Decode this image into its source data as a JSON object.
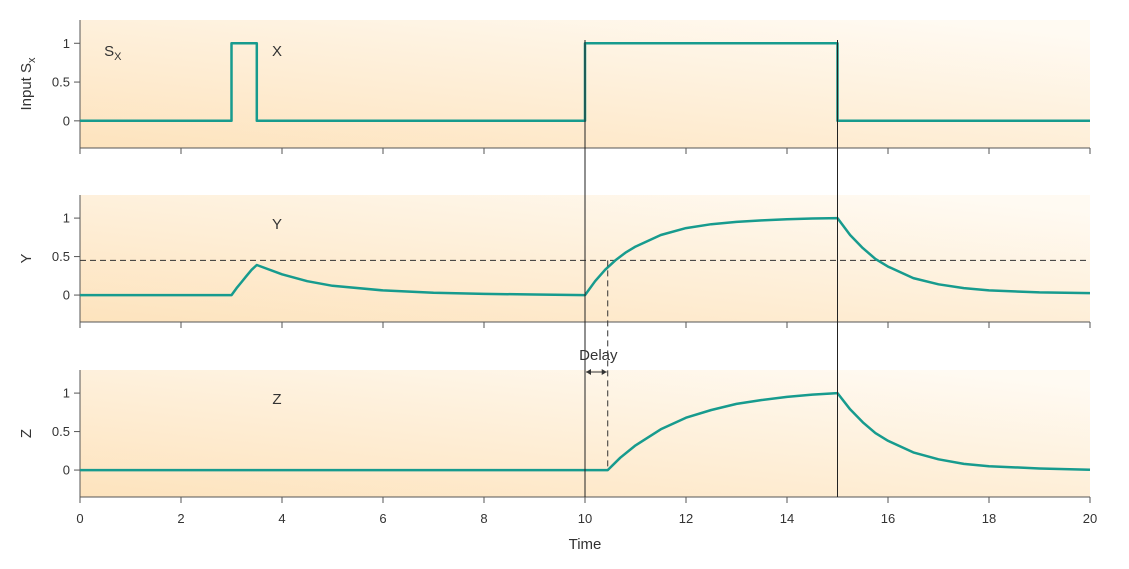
{
  "chart_data": {
    "type": "line",
    "xlabel": "Time",
    "xlim": [
      0,
      20
    ],
    "x_ticks": [
      0,
      2,
      4,
      6,
      8,
      10,
      12,
      14,
      16,
      18,
      20
    ],
    "colors": {
      "line": "#179b8e",
      "axis": "#555555",
      "background_warm": "#fde3bd",
      "background_light": "#fffaf2"
    },
    "panels": [
      {
        "id": "input",
        "ylabel": "Input S",
        "ylabel_sub": "x",
        "ylim": [
          -0.35,
          1.3
        ],
        "y_ticks": [
          0,
          0.5,
          1
        ],
        "y_tick_labels": [
          "0",
          "0.5",
          "1"
        ],
        "labels": [
          {
            "text": "S",
            "sub": "X",
            "x": 0.65,
            "y": 0.9
          },
          {
            "text": "X",
            "x": 3.9,
            "y": 0.9
          }
        ],
        "series": [
          {
            "x": [
              0,
              3,
              3,
              3.5,
              3.5,
              10,
              10,
              15,
              15,
              20
            ],
            "y": [
              0,
              0,
              1,
              1,
              0,
              0,
              1,
              1,
              0,
              0
            ]
          }
        ]
      },
      {
        "id": "y",
        "ylabel": "Y",
        "ylim": [
          -0.35,
          1.3
        ],
        "y_ticks": [
          0,
          0.5,
          1
        ],
        "y_tick_labels": [
          "0",
          "0.5",
          "1"
        ],
        "labels": [
          {
            "text": "Y",
            "x": 3.9,
            "y": 0.92
          }
        ],
        "threshold": 0.45,
        "series": [
          {
            "x": [
              0,
              3,
              3.1,
              3.2,
              3.3,
              3.4,
              3.5,
              4,
              4.5,
              5,
              6,
              7,
              8,
              9,
              10,
              10.2,
              10.4,
              10.6,
              10.8,
              11,
              11.5,
              12,
              12.5,
              13,
              13.5,
              14,
              14.5,
              15,
              15.25,
              15.5,
              15.75,
              16,
              16.5,
              17,
              17.5,
              18,
              19,
              20
            ],
            "y": [
              0,
              0,
              0.09,
              0.17,
              0.25,
              0.33,
              0.39,
              0.27,
              0.18,
              0.12,
              0.06,
              0.03,
              0.015,
              0.007,
              0,
              0.18,
              0.33,
              0.45,
              0.55,
              0.63,
              0.78,
              0.87,
              0.92,
              0.95,
              0.97,
              0.985,
              0.995,
              1,
              0.78,
              0.61,
              0.47,
              0.37,
              0.22,
              0.14,
              0.09,
              0.06,
              0.035,
              0.025
            ]
          }
        ]
      },
      {
        "id": "z",
        "ylabel": "Z",
        "ylim": [
          -0.35,
          1.3
        ],
        "y_ticks": [
          0,
          0.5,
          1
        ],
        "y_tick_labels": [
          "0",
          "0.5",
          "1"
        ],
        "labels": [
          {
            "text": "Z",
            "x": 3.9,
            "y": 0.92
          }
        ],
        "series": [
          {
            "x": [
              0,
              10.45,
              10.7,
              11,
              11.5,
              12,
              12.5,
              13,
              13.5,
              14,
              14.5,
              15,
              15.25,
              15.5,
              15.75,
              16,
              16.5,
              17,
              17.5,
              18,
              19,
              20
            ],
            "y": [
              0,
              0,
              0.16,
              0.32,
              0.53,
              0.68,
              0.78,
              0.86,
              0.91,
              0.95,
              0.98,
              1,
              0.79,
              0.62,
              0.48,
              0.38,
              0.23,
              0.14,
              0.08,
              0.05,
              0.02,
              0.005
            ]
          }
        ]
      }
    ],
    "delay_annotation": {
      "text": "Delay",
      "x_start": 10,
      "x_end": 10.45
    },
    "vertical_markers": [
      10,
      15
    ]
  }
}
